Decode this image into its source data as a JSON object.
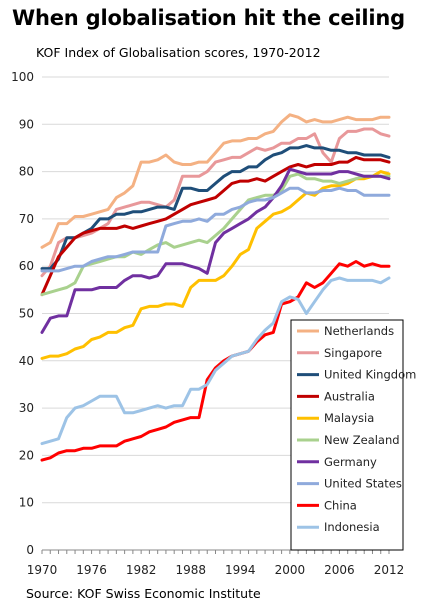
{
  "chart_data": {
    "type": "line",
    "title": "When globalisation hit the ceiling",
    "subtitle": "KOF Index of Globalisation scores, 1970-2012",
    "source": "Source: KOF Swiss Economic Institute",
    "xlim": [
      1970,
      2012
    ],
    "ylim": [
      0,
      100
    ],
    "x_ticks": [
      1970,
      1976,
      1982,
      1988,
      1994,
      2000,
      2006,
      2012
    ],
    "y_ticks": [
      0,
      10,
      20,
      30,
      40,
      50,
      60,
      70,
      80,
      90,
      100
    ],
    "grid": "horizontal",
    "legend_position": "bottom-right",
    "x": [
      1970,
      1971,
      1972,
      1973,
      1974,
      1975,
      1976,
      1977,
      1978,
      1979,
      1980,
      1981,
      1982,
      1983,
      1984,
      1985,
      1986,
      1987,
      1988,
      1989,
      1990,
      1991,
      1992,
      1993,
      1994,
      1995,
      1996,
      1997,
      1998,
      1999,
      2000,
      2001,
      2002,
      2003,
      2004,
      2005,
      2006,
      2007,
      2008,
      2009,
      2010,
      2011,
      2012
    ],
    "series": [
      {
        "name": "Netherlands",
        "color": "#f4b183",
        "values": [
          64,
          65,
          69,
          69,
          70.5,
          70.5,
          71,
          71.5,
          72,
          74.5,
          75.5,
          77,
          82,
          82,
          82.5,
          83.5,
          82,
          81.5,
          81.5,
          82,
          82,
          84,
          86,
          86.5,
          86.5,
          87,
          87,
          88,
          88.5,
          90.5,
          92,
          91.5,
          90.5,
          91,
          90.5,
          90.5,
          91,
          91.5,
          91,
          91,
          91,
          91.5,
          91.5
        ]
      },
      {
        "name": "Singapore",
        "color": "#e8989a",
        "values": [
          58,
          60,
          65,
          66,
          66,
          66.5,
          67,
          68,
          69,
          72,
          72.5,
          73,
          73.5,
          73.5,
          73,
          72.5,
          74,
          79,
          79,
          79,
          80,
          82,
          82.5,
          83,
          83,
          84,
          85,
          84.5,
          85,
          86,
          86,
          87,
          87,
          88,
          84,
          82,
          87,
          88.5,
          88.5,
          89,
          89,
          88,
          87.5
        ]
      },
      {
        "name": "United Kingdom",
        "color": "#1f4e79",
        "values": [
          59.5,
          59.5,
          61.5,
          66,
          66,
          67,
          68,
          70,
          70,
          71,
          71,
          71.5,
          71.5,
          72,
          72.5,
          72.5,
          72,
          76.5,
          76.5,
          76,
          76,
          77.5,
          79,
          80,
          80,
          81,
          81,
          82.5,
          83.5,
          84,
          85,
          85,
          85.5,
          85,
          85,
          84.5,
          84.5,
          84,
          84,
          83.5,
          83.5,
          83.5,
          83
        ]
      },
      {
        "name": "Australia",
        "color": "#c00000",
        "values": [
          54,
          58,
          62,
          64,
          66,
          67,
          67.5,
          68,
          68,
          68,
          68.5,
          68,
          68.5,
          69,
          69.5,
          70,
          71,
          72,
          73,
          73.5,
          74,
          74.5,
          76,
          77.5,
          78,
          78,
          78.5,
          78,
          79,
          80,
          81,
          81.5,
          81,
          81.5,
          81.5,
          81.5,
          82,
          82,
          83,
          82.5,
          82.5,
          82.5,
          82
        ]
      },
      {
        "name": "Malaysia",
        "color": "#ffc000",
        "values": [
          40.5,
          41,
          41,
          41.5,
          42.5,
          43,
          44.5,
          45,
          46,
          46,
          47,
          47.5,
          51,
          51.5,
          51.5,
          52,
          52,
          51.5,
          55.5,
          57,
          57,
          57,
          58,
          60,
          62.5,
          63.5,
          68,
          69.5,
          71,
          71.5,
          72.5,
          74,
          75.5,
          75,
          76.5,
          77,
          77,
          77.5,
          78.5,
          78.5,
          79,
          80,
          79.5
        ]
      },
      {
        "name": "New Zealand",
        "color": "#a9d18e",
        "values": [
          54,
          54.5,
          55,
          55.5,
          56.5,
          60,
          60.5,
          61,
          61.5,
          62,
          62,
          63,
          62.5,
          63.5,
          64.5,
          65,
          64,
          64.5,
          65,
          65.5,
          65,
          66.5,
          68,
          70,
          72,
          74,
          74.5,
          75,
          75,
          76,
          79,
          79.5,
          78.5,
          78.5,
          78,
          78,
          77.5,
          78,
          78.5,
          79,
          79,
          79,
          79
        ]
      },
      {
        "name": "Germany",
        "color": "#7030a0",
        "values": [
          46,
          49,
          49.5,
          49.5,
          55,
          55,
          55,
          55.5,
          55.5,
          55.5,
          57,
          58,
          58,
          57.5,
          58,
          60.5,
          60.5,
          60.5,
          60,
          59.5,
          58.5,
          65,
          67,
          68,
          69,
          70,
          71.5,
          72.5,
          74.5,
          77,
          80.5,
          80,
          79.5,
          79.5,
          79.5,
          79.5,
          80,
          80,
          79.5,
          79,
          79,
          79,
          78.5
        ]
      },
      {
        "name": "United States",
        "color": "#8faadc",
        "values": [
          59,
          59,
          59,
          59.5,
          60,
          60,
          61,
          61.5,
          62,
          62,
          62.5,
          63,
          63,
          63,
          63,
          68.5,
          69,
          69.5,
          69.5,
          70,
          69.5,
          71,
          71,
          72,
          72.5,
          73.5,
          74,
          74,
          74.5,
          75.5,
          76.5,
          76.5,
          75.5,
          75.5,
          76,
          76,
          76.5,
          76,
          76,
          75,
          75,
          75,
          75
        ]
      },
      {
        "name": "China",
        "color": "#ff0000",
        "values": [
          19,
          19.5,
          20.5,
          21,
          21,
          21.5,
          21.5,
          22,
          22,
          22,
          23,
          23.5,
          24,
          25,
          25.5,
          26,
          27,
          27.5,
          28,
          28,
          36,
          38.5,
          40,
          41,
          41.5,
          42,
          44,
          45.5,
          46,
          52,
          52.5,
          53.5,
          56.5,
          55.5,
          56.5,
          58.5,
          60.5,
          60,
          61,
          60,
          60.5,
          60,
          60
        ]
      },
      {
        "name": "Indonesia",
        "color": "#9dc3e6",
        "values": [
          22.5,
          23,
          23.5,
          28,
          30,
          30.5,
          31.5,
          32.5,
          32.5,
          32.5,
          29,
          29,
          29.5,
          30,
          30.5,
          30,
          30.5,
          30.5,
          34,
          34,
          35,
          38,
          39.5,
          41,
          41.5,
          42,
          44.5,
          46.5,
          48,
          52.5,
          53.5,
          53,
          50,
          52.5,
          55,
          57,
          57.5,
          57,
          57,
          57,
          57,
          56.5,
          57.5
        ]
      }
    ]
  }
}
